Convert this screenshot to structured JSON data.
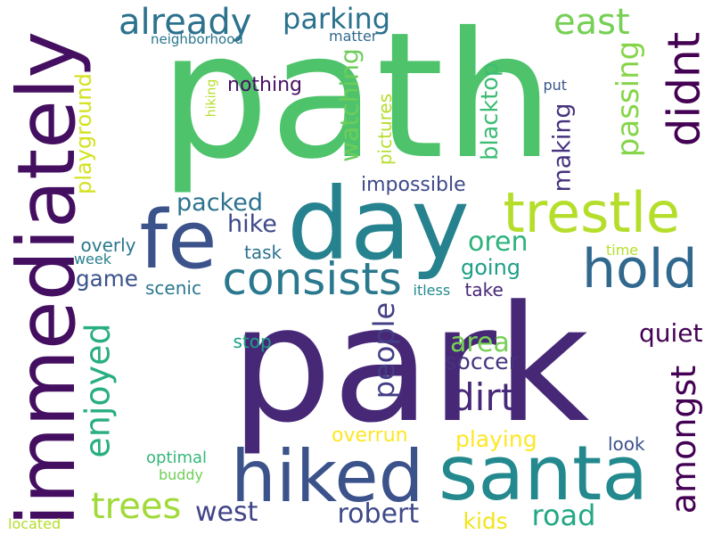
{
  "words": [
    {
      "text": "park",
      "color": "#472877"
    },
    {
      "text": "path",
      "color": "#4ec36b"
    },
    {
      "text": "day",
      "color": "#26828e"
    },
    {
      "text": "santa",
      "color": "#23898e"
    },
    {
      "text": "hiked",
      "color": "#3b528b"
    },
    {
      "text": "immediately",
      "color": "#440f60"
    },
    {
      "text": "fe",
      "color": "#3b528b"
    },
    {
      "text": "trestle",
      "color": "#b5de2b"
    },
    {
      "text": "hold",
      "color": "#31688e"
    },
    {
      "text": "consists",
      "color": "#2a788e"
    },
    {
      "text": "didnt",
      "color": "#440154"
    },
    {
      "text": "already",
      "color": "#2c728e"
    },
    {
      "text": "parking",
      "color": "#2c718e"
    },
    {
      "text": "east",
      "color": "#75d054"
    },
    {
      "text": "trees",
      "color": "#a0da39"
    },
    {
      "text": "enjoyed",
      "color": "#29af7f"
    },
    {
      "text": "amongst",
      "color": "#440154"
    },
    {
      "text": "dirt",
      "color": "#482878"
    },
    {
      "text": "blacktop",
      "color": "#3dbc74"
    },
    {
      "text": "passing",
      "color": "#86d549"
    },
    {
      "text": "packed",
      "color": "#2c728e"
    },
    {
      "text": "robert",
      "color": "#3e4989"
    },
    {
      "text": "west",
      "color": "#404387"
    },
    {
      "text": "road",
      "color": "#22a884"
    },
    {
      "text": "people",
      "color": "#433e85"
    },
    {
      "text": "playground",
      "color": "#d2e21b"
    },
    {
      "text": "area",
      "color": "#75d054"
    },
    {
      "text": "soccer",
      "color": "#46337e"
    },
    {
      "text": "oren",
      "color": "#2db27d"
    },
    {
      "text": "going",
      "color": "#1f9e89"
    },
    {
      "text": "watching",
      "color": "#6ccd5a"
    },
    {
      "text": "hike",
      "color": "#3e4989"
    },
    {
      "text": "game",
      "color": "#3b528b"
    },
    {
      "text": "quiet",
      "color": "#440154"
    },
    {
      "text": "playing",
      "color": "#fde725"
    },
    {
      "text": "overrun",
      "color": "#fde725"
    },
    {
      "text": "kids",
      "color": "#f1e51d"
    },
    {
      "text": "making",
      "color": "#46327e"
    },
    {
      "text": "impossible",
      "color": "#3e4989"
    },
    {
      "text": "nothing",
      "color": "#471164"
    },
    {
      "text": "pictures",
      "color": "#b5de2b"
    },
    {
      "text": "take",
      "color": "#482878"
    },
    {
      "text": "look",
      "color": "#3b528b"
    },
    {
      "text": "scenic",
      "color": "#2a788e"
    },
    {
      "text": "task",
      "color": "#2c728e"
    },
    {
      "text": "overly",
      "color": "#2a788e"
    },
    {
      "text": "stop",
      "color": "#1f9e89"
    },
    {
      "text": "week",
      "color": "#277f8e"
    },
    {
      "text": "neighborhood",
      "color": "#2a768e"
    },
    {
      "text": "matter",
      "color": "#31688e"
    },
    {
      "text": "hiking",
      "color": "#b5de2b"
    },
    {
      "text": "itless",
      "color": "#23898e"
    },
    {
      "text": "put",
      "color": "#39568c"
    },
    {
      "text": "time",
      "color": "#b5de2b"
    },
    {
      "text": "optimal",
      "color": "#35b779"
    },
    {
      "text": "buddy",
      "color": "#6ece58"
    },
    {
      "text": "located",
      "color": "#b5de2b"
    }
  ]
}
